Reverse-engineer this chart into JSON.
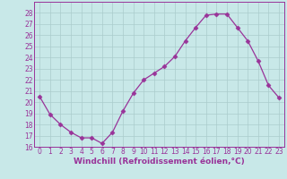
{
  "x": [
    0,
    1,
    2,
    3,
    4,
    5,
    6,
    7,
    8,
    9,
    10,
    11,
    12,
    13,
    14,
    15,
    16,
    17,
    18,
    19,
    20,
    21,
    22,
    23
  ],
  "y": [
    20.5,
    18.9,
    18.0,
    17.3,
    16.8,
    16.8,
    16.3,
    17.3,
    19.2,
    20.8,
    22.0,
    22.6,
    23.2,
    24.1,
    25.5,
    26.7,
    27.8,
    27.9,
    27.9,
    26.7,
    25.5,
    23.7,
    21.5,
    20.4
  ],
  "line_color": "#993399",
  "marker": "D",
  "marker_size": 2.5,
  "bg_color": "#c8e8e8",
  "grid_color": "#aacccc",
  "axis_color": "#993399",
  "xlabel": "Windchill (Refroidissement éolien,°C)",
  "ylim": [
    16,
    29
  ],
  "xlim": [
    -0.5,
    23.5
  ],
  "yticks": [
    16,
    17,
    18,
    19,
    20,
    21,
    22,
    23,
    24,
    25,
    26,
    27,
    28
  ],
  "xticks": [
    0,
    1,
    2,
    3,
    4,
    5,
    6,
    7,
    8,
    9,
    10,
    11,
    12,
    13,
    14,
    15,
    16,
    17,
    18,
    19,
    20,
    21,
    22,
    23
  ],
  "tick_fontsize": 5.5,
  "xlabel_fontsize": 6.5
}
